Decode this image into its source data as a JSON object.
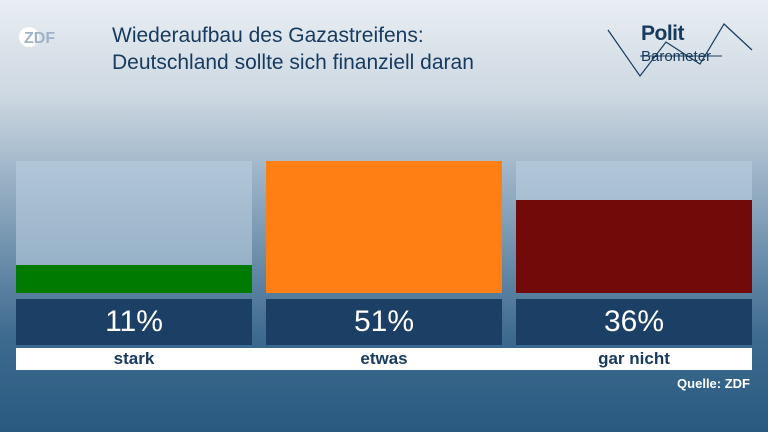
{
  "logo": {
    "text": "ZDF",
    "icon": "zdf-logo"
  },
  "title_lines": [
    "Wiederaufbau des Gazastreifens:",
    "Deutschland sollte sich finanziell daran"
  ],
  "brand": {
    "line1": "Polit",
    "line2": "Barometer",
    "icon": "politbarometer-logo"
  },
  "source": "Quelle: ZDF",
  "colors": {
    "stark": "#007a00",
    "etwas": "#ff7f14",
    "gar_nicht": "#730a0a",
    "value_box": "#1c3f66"
  },
  "chart_data": {
    "type": "bar",
    "categories": [
      "stark",
      "etwas",
      "gar nicht"
    ],
    "values": [
      11,
      51,
      36
    ],
    "value_labels": [
      "11%",
      "51%",
      "36%"
    ],
    "colors": [
      "#007a00",
      "#ff7f14",
      "#730a0a"
    ],
    "ylim": [
      0,
      51
    ],
    "grid": false,
    "title": "Wiederaufbau des Gazastreifens: Deutschland sollte sich finanziell daran"
  }
}
